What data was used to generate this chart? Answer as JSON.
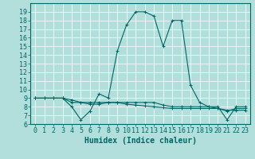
{
  "xlabel": "Humidex (Indice chaleur)",
  "bg_color": "#b2dfdb",
  "line_color": "#006666",
  "grid_color": "#ffffff",
  "xlim": [
    -0.5,
    23.5
  ],
  "ylim": [
    6,
    20
  ],
  "yticks": [
    6,
    7,
    8,
    9,
    10,
    11,
    12,
    13,
    14,
    15,
    16,
    17,
    18,
    19
  ],
  "xticks": [
    0,
    1,
    2,
    3,
    4,
    5,
    6,
    7,
    8,
    9,
    10,
    11,
    12,
    13,
    14,
    15,
    16,
    17,
    18,
    19,
    20,
    21,
    22,
    23
  ],
  "series1_x": [
    0,
    1,
    2,
    3,
    4,
    5,
    6,
    7,
    8,
    9,
    10,
    11,
    12,
    13,
    14,
    15,
    16,
    17,
    18,
    19,
    20,
    21,
    22,
    23
  ],
  "series1_y": [
    9,
    9,
    9,
    9,
    8,
    6.5,
    7.5,
    9.5,
    9,
    14.5,
    17.5,
    19,
    19,
    18.5,
    15,
    18,
    18,
    10.5,
    8.5,
    8,
    8,
    6.5,
    8,
    8
  ],
  "series2_x": [
    0,
    1,
    2,
    3,
    4,
    5,
    6,
    7,
    8,
    9,
    10,
    11,
    12,
    13,
    14,
    15,
    16,
    17,
    18,
    19,
    20,
    21,
    22,
    23
  ],
  "series2_y": [
    9,
    9,
    9,
    9,
    8.5,
    8.5,
    8.5,
    8.5,
    8.5,
    8.5,
    8.5,
    8.5,
    8.5,
    8.5,
    8.2,
    8,
    8,
    8,
    8,
    8,
    7.8,
    7.5,
    7.8,
    7.8
  ],
  "series3_x": [
    0,
    1,
    2,
    3,
    4,
    5,
    6,
    7,
    8,
    9,
    10,
    11,
    12,
    13,
    14,
    15,
    16,
    17,
    18,
    19,
    20,
    21,
    22,
    23
  ],
  "series3_y": [
    9,
    9,
    9,
    9,
    8.8,
    8.5,
    8.3,
    8.3,
    8.5,
    8.5,
    8.3,
    8.2,
    8.1,
    8.0,
    7.9,
    7.8,
    7.8,
    7.8,
    7.8,
    7.8,
    7.8,
    7.6,
    7.6,
    7.6
  ],
  "marker": "+",
  "markersize": 3,
  "linewidth": 0.8,
  "xlabel_fontsize": 7,
  "tick_fontsize": 6
}
